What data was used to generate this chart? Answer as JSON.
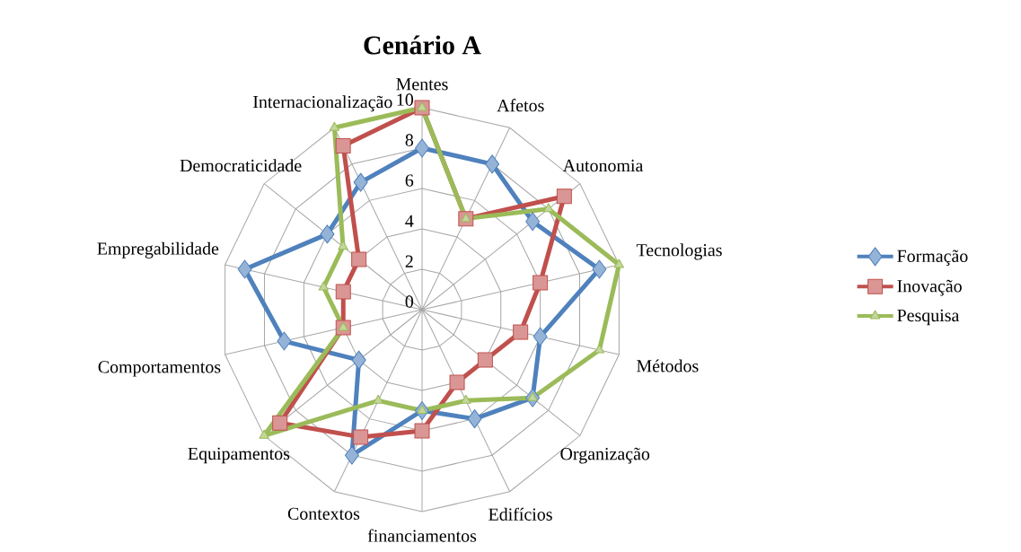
{
  "chart_data": {
    "type": "radar",
    "title": "Cenário A",
    "categories": [
      "Mentes",
      "Afetos",
      "Autonomia",
      "Tecnologias",
      "Métodos",
      "Organização",
      "Edifícios",
      "financiamentos",
      "Contextos",
      "Equipamentos",
      "Comportamentos",
      "Empregabilidade",
      "Democraticidade",
      "Internacionalização"
    ],
    "series": [
      {
        "name": "Formação",
        "color": "#4f81bd",
        "marker": "diamond",
        "values": [
          8,
          8,
          7,
          9,
          6,
          7,
          6,
          5,
          8,
          4,
          7,
          9,
          6,
          7
        ]
      },
      {
        "name": "Inovação",
        "color": "#c0504d",
        "marker": "square",
        "values": [
          10,
          5,
          9,
          6,
          5,
          4,
          4,
          6,
          7,
          9,
          4,
          4,
          4,
          9
        ]
      },
      {
        "name": "Pesquisa",
        "color": "#9bbb59",
        "marker": "triangle",
        "values": [
          10,
          5,
          8,
          10,
          9,
          7,
          5,
          5,
          5,
          10,
          4,
          5,
          5,
          10
        ]
      }
    ],
    "ylim": [
      0,
      10
    ],
    "yticks": [
      0,
      2,
      4,
      6,
      8,
      10
    ],
    "grid": true,
    "legend": "right"
  }
}
